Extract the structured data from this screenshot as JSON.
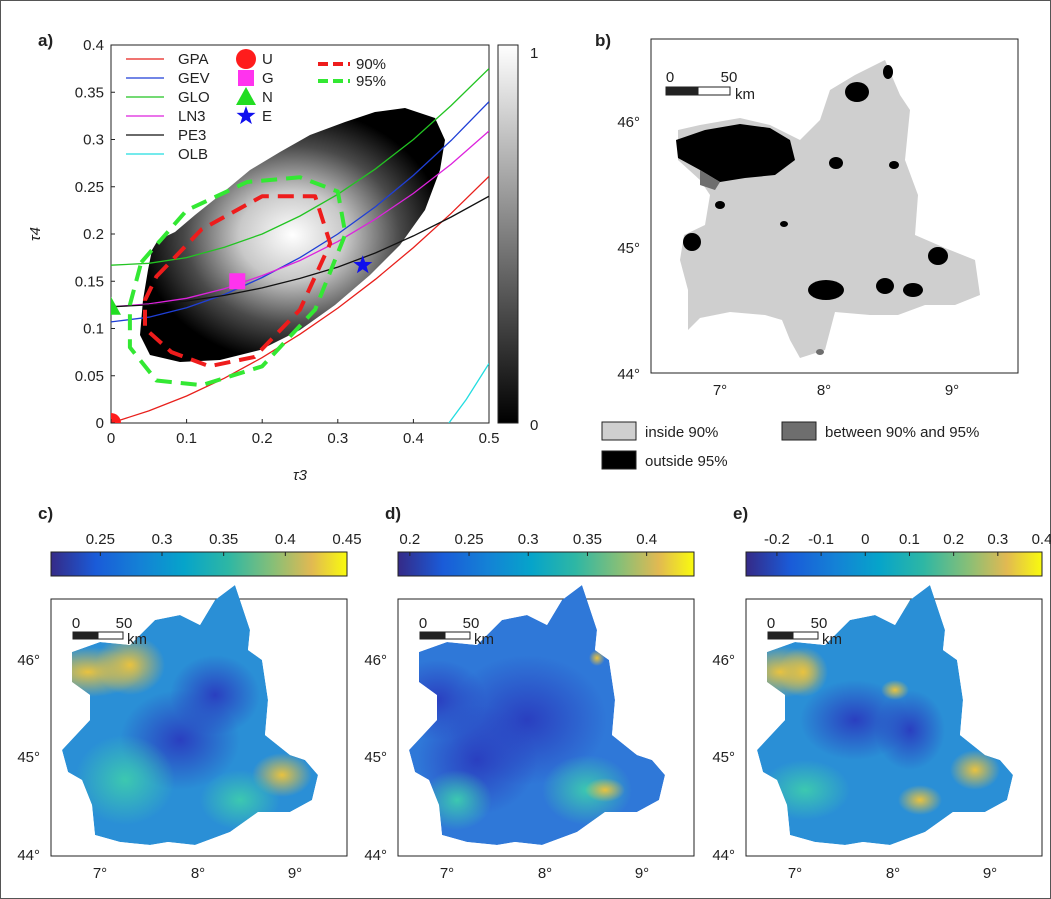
{
  "panels": {
    "a": {
      "label": "a)"
    },
    "b": {
      "label": "b)"
    },
    "c": {
      "label": "c)"
    },
    "d": {
      "label": "d)"
    },
    "e": {
      "label": "e)"
    }
  },
  "chart_data": [
    {
      "id": "a",
      "type": "scatter",
      "xlabel": "τ3",
      "ylabel": "τ4",
      "xlim": [
        0,
        0.5
      ],
      "ylim": [
        0,
        0.4
      ],
      "xticks": [
        0,
        0.1,
        0.2,
        0.3,
        0.4,
        0.5
      ],
      "yticks": [
        0,
        0.05,
        0.1,
        0.15,
        0.2,
        0.25,
        0.3,
        0.35,
        0.4
      ],
      "colorbar": {
        "min": 0,
        "max": 1,
        "min_label": "0",
        "max_label": "1",
        "colors": [
          "#000000",
          "#ffffff"
        ]
      },
      "series": [
        {
          "name": "GPA",
          "kind": "curve",
          "color": "#e8201c",
          "x": [
            0,
            0.05,
            0.1,
            0.15,
            0.2,
            0.25,
            0.3,
            0.35,
            0.4,
            0.45,
            0.5
          ],
          "y": [
            0,
            0.0128,
            0.0286,
            0.0474,
            0.0692,
            0.094,
            0.1216,
            0.1522,
            0.1856,
            0.2219,
            0.261
          ]
        },
        {
          "name": "GEV",
          "kind": "curve",
          "color": "#1f3fd6",
          "x": [
            0,
            0.05,
            0.1,
            0.15,
            0.2,
            0.25,
            0.3,
            0.35,
            0.4,
            0.45,
            0.5
          ],
          "y": [
            0.107,
            0.112,
            0.122,
            0.136,
            0.154,
            0.175,
            0.2,
            0.229,
            0.262,
            0.299,
            0.34
          ]
        },
        {
          "name": "GLO",
          "kind": "curve",
          "color": "#22c422",
          "x": [
            0,
            0.05,
            0.1,
            0.15,
            0.2,
            0.25,
            0.3,
            0.35,
            0.4,
            0.45,
            0.5
          ],
          "y": [
            0.167,
            0.169,
            0.175,
            0.186,
            0.2,
            0.219,
            0.242,
            0.269,
            0.3,
            0.336,
            0.375
          ]
        },
        {
          "name": "LN3",
          "kind": "curve",
          "color": "#dd22dd",
          "x": [
            0,
            0.05,
            0.1,
            0.15,
            0.2,
            0.25,
            0.3,
            0.35,
            0.4,
            0.45,
            0.5
          ],
          "y": [
            0.123,
            0.126,
            0.132,
            0.142,
            0.156,
            0.172,
            0.192,
            0.216,
            0.243,
            0.274,
            0.309
          ]
        },
        {
          "name": "PE3",
          "kind": "curve",
          "color": "#111111",
          "x": [
            0,
            0.05,
            0.1,
            0.15,
            0.2,
            0.25,
            0.3,
            0.35,
            0.4,
            0.45,
            0.5
          ],
          "y": [
            0.123,
            0.125,
            0.129,
            0.135,
            0.143,
            0.153,
            0.165,
            0.18,
            0.198,
            0.218,
            0.24
          ]
        },
        {
          "name": "OLB",
          "kind": "curve",
          "color": "#22dde0",
          "x": [
            0.447,
            0.47,
            0.5
          ],
          "y": [
            0,
            0.025,
            0.063
          ]
        },
        {
          "name": "U",
          "kind": "point",
          "marker": "circle",
          "color": "#ff1c1c",
          "x": [
            0
          ],
          "y": [
            0
          ]
        },
        {
          "name": "G",
          "kind": "point",
          "marker": "square",
          "color": "#ff33ee",
          "x": [
            0.167
          ],
          "y": [
            0.15
          ]
        },
        {
          "name": "N",
          "kind": "point",
          "marker": "triangle",
          "color": "#22dd22",
          "x": [
            0
          ],
          "y": [
            0.123
          ]
        },
        {
          "name": "E",
          "kind": "point",
          "marker": "star",
          "color": "#1010ee",
          "x": [
            0.333
          ],
          "y": [
            0.167
          ]
        },
        {
          "name": "90%",
          "kind": "contour",
          "color": "#ee1c1c",
          "x": [
            0.06,
            0.12,
            0.2,
            0.27,
            0.29,
            0.25,
            0.19,
            0.13,
            0.08,
            0.045,
            0.045,
            0.06
          ],
          "y": [
            0.155,
            0.205,
            0.24,
            0.24,
            0.19,
            0.12,
            0.07,
            0.06,
            0.075,
            0.1,
            0.13,
            0.155
          ]
        },
        {
          "name": "95%",
          "kind": "contour",
          "color": "#33e833",
          "x": [
            0.04,
            0.1,
            0.18,
            0.25,
            0.3,
            0.31,
            0.27,
            0.2,
            0.12,
            0.06,
            0.025,
            0.025,
            0.04
          ],
          "y": [
            0.17,
            0.225,
            0.255,
            0.26,
            0.245,
            0.2,
            0.12,
            0.06,
            0.04,
            0.045,
            0.08,
            0.125,
            0.17
          ]
        }
      ]
    },
    {
      "id": "b",
      "type": "heatmap",
      "map": "classification",
      "xticks": [
        "7°",
        "8°",
        "9°"
      ],
      "yticks": [
        "46°",
        "45°",
        "44°"
      ],
      "scale_bar": {
        "start": "0",
        "end": "50",
        "unit": "km"
      },
      "legend": [
        {
          "label": "inside 90%",
          "color": "#cfcfcf"
        },
        {
          "label": "between 90% and 95%",
          "color": "#6e6e6e"
        },
        {
          "label": "outside 95%",
          "color": "#000000"
        }
      ]
    },
    {
      "id": "c",
      "type": "heatmap",
      "xticks": [
        "7°",
        "8°",
        "9°"
      ],
      "yticks": [
        "46°",
        "45°",
        "44°"
      ],
      "scale_bar": {
        "start": "0",
        "end": "50",
        "unit": "km"
      },
      "colorbar": {
        "ticks": [
          0.25,
          0.3,
          0.35,
          0.4,
          0.45
        ],
        "tick_labels": [
          "0.25",
          "0.3",
          "0.35",
          "0.4",
          "0.45"
        ],
        "min": 0.21,
        "max": 0.45
      }
    },
    {
      "id": "d",
      "type": "heatmap",
      "xticks": [
        "7°",
        "8°",
        "9°"
      ],
      "yticks": [
        "46°",
        "45°",
        "44°"
      ],
      "scale_bar": {
        "start": "0",
        "end": "50",
        "unit": "km"
      },
      "colorbar": {
        "ticks": [
          0.2,
          0.25,
          0.3,
          0.35,
          0.4
        ],
        "tick_labels": [
          "0.2",
          "0.25",
          "0.3",
          "0.35",
          "0.4"
        ],
        "min": 0.19,
        "max": 0.44
      }
    },
    {
      "id": "e",
      "type": "heatmap",
      "xticks": [
        "7°",
        "8°",
        "9°"
      ],
      "yticks": [
        "46°",
        "45°",
        "44°"
      ],
      "scale_bar": {
        "start": "0",
        "end": "50",
        "unit": "km"
      },
      "colorbar": {
        "ticks": [
          -0.2,
          -0.1,
          0,
          0.1,
          0.2,
          0.3,
          0.4
        ],
        "tick_labels": [
          "-0.2",
          "-0.1",
          "0",
          "0.1",
          "0.2",
          "0.3",
          "0.4"
        ],
        "min": -0.27,
        "max": 0.4
      }
    }
  ]
}
